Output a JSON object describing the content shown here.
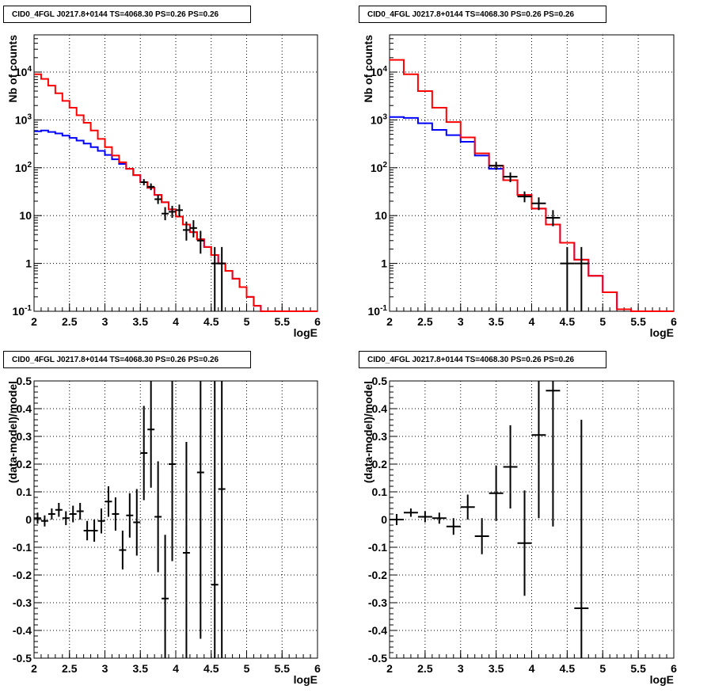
{
  "panel_title": "CID0_4FGL J0217.8+0144 TS=4068.30 PS=0.26 PS=0.26",
  "chart_data": [
    {
      "type": "line",
      "title": "CID0_4FGL J0217.8+0144 TS=4068.30 PS=0.26 PS=0.26",
      "xlabel": "logE",
      "ylabel": "Nb of counts",
      "xlim": [
        2,
        6
      ],
      "ylim": [
        0.1,
        60000
      ],
      "yscale": "log",
      "xticks": [
        "2",
        "2.5",
        "3",
        "3.5",
        "4",
        "4.5",
        "5",
        "5.5",
        "6"
      ],
      "yticks": [
        "10^-1",
        "1",
        "10",
        "10^2",
        "10^3",
        "10^4"
      ],
      "grid": true,
      "bin_edges": [
        2.0,
        2.1,
        2.2,
        2.3,
        2.4,
        2.5,
        2.6,
        2.7,
        2.8,
        2.9,
        3.0,
        3.1,
        3.2,
        3.3,
        3.4,
        3.5,
        3.6,
        3.7,
        3.8,
        3.9,
        4.0,
        4.1,
        4.2,
        4.3,
        4.4,
        4.5,
        4.6,
        4.7,
        4.8,
        4.9,
        5.0,
        5.1,
        5.2,
        5.3,
        5.4,
        5.5,
        5.6,
        5.7,
        5.8,
        5.9,
        6.0
      ],
      "series": [
        {
          "color": "#ff0000",
          "values": [
            9000,
            7200,
            5200,
            3600,
            2500,
            1800,
            1250,
            870,
            600,
            400,
            270,
            180,
            130,
            95,
            70,
            50,
            38,
            27,
            19,
            13.5,
            9.5,
            6.5,
            4.5,
            3.2,
            2.2,
            1.5,
            1.0,
            0.7,
            0.48,
            0.32,
            0.2,
            0.13,
            0.1,
            0.1,
            0.1,
            0.1,
            0.1,
            0.1,
            0.1,
            0.1
          ]
        },
        {
          "color": "#0000ff",
          "values": [
            580,
            600,
            560,
            520,
            470,
            420,
            370,
            320,
            270,
            225,
            185,
            150,
            120,
            95,
            70,
            50,
            38,
            27,
            19,
            13.5,
            9.5,
            6.5,
            4.5,
            3.2,
            2.2,
            1.5,
            1.0,
            0.7,
            0.48,
            0.32,
            0.2,
            0.13,
            0.1,
            0.1,
            0.1,
            0.1,
            0.1,
            0.1,
            0.1,
            0.1
          ]
        }
      ],
      "points": [
        {
          "x": 3.55,
          "xerr": 0.05,
          "y": 50,
          "ylo": 43,
          "yhi": 58
        },
        {
          "x": 3.65,
          "xerr": 0.05,
          "y": 40,
          "ylo": 34,
          "yhi": 47
        },
        {
          "x": 3.75,
          "xerr": 0.05,
          "y": 22,
          "ylo": 17.5,
          "yhi": 27
        },
        {
          "x": 3.85,
          "xerr": 0.05,
          "y": 11,
          "ylo": 8,
          "yhi": 15
        },
        {
          "x": 3.95,
          "xerr": 0.05,
          "y": 12,
          "ylo": 9,
          "yhi": 16
        },
        {
          "x": 4.05,
          "xerr": 0.05,
          "y": 13,
          "ylo": 9.5,
          "yhi": 17
        },
        {
          "x": 4.15,
          "xerr": 0.05,
          "y": 5,
          "ylo": 3,
          "yhi": 7.5
        },
        {
          "x": 4.25,
          "xerr": 0.05,
          "y": 5.5,
          "ylo": 3.5,
          "yhi": 8
        },
        {
          "x": 4.35,
          "xerr": 0.05,
          "y": 3,
          "ylo": 1.6,
          "yhi": 4.8
        },
        {
          "x": 4.55,
          "xerr": 0.05,
          "y": 1,
          "ylo": 0.1,
          "yhi": 2.2
        },
        {
          "x": 4.65,
          "xerr": 0.05,
          "y": 1,
          "ylo": 0.1,
          "yhi": 2.2
        }
      ]
    },
    {
      "type": "line",
      "title": "CID0_4FGL J0217.8+0144 TS=4068.30 PS=0.26 PS=0.26",
      "xlabel": "logE",
      "ylabel": "Nb of counts",
      "xlim": [
        2,
        6
      ],
      "ylim": [
        0.1,
        60000
      ],
      "yscale": "log",
      "xticks": [
        "2",
        "2.5",
        "3",
        "3.5",
        "4",
        "4.5",
        "5",
        "5.5",
        "6"
      ],
      "yticks": [
        "10^-1",
        "1",
        "10",
        "10^2",
        "10^3",
        "10^4"
      ],
      "grid": true,
      "bin_edges": [
        2.0,
        2.2,
        2.4,
        2.6,
        2.8,
        3.0,
        3.2,
        3.4,
        3.6,
        3.8,
        4.0,
        4.2,
        4.4,
        4.6,
        4.8,
        5.0,
        5.2,
        5.4,
        5.6,
        5.8,
        6.0
      ],
      "series": [
        {
          "color": "#ff0000",
          "values": [
            18000,
            9000,
            4000,
            1800,
            900,
            430,
            200,
            110,
            55,
            27,
            14,
            6.5,
            2.7,
            1.2,
            0.55,
            0.25,
            0.11,
            0.1,
            0.1,
            0.1
          ]
        },
        {
          "color": "#0000ff",
          "values": [
            1150,
            1100,
            850,
            620,
            480,
            350,
            180,
            95,
            55,
            27,
            14,
            6.5,
            2.7,
            1.2,
            0.55,
            0.25,
            0.11,
            0.1,
            0.1,
            0.1
          ]
        }
      ],
      "points": [
        {
          "x": 3.5,
          "xerr": 0.1,
          "y": 110,
          "ylo": 90,
          "yhi": 132
        },
        {
          "x": 3.7,
          "xerr": 0.1,
          "y": 65,
          "ylo": 50,
          "yhi": 80
        },
        {
          "x": 3.9,
          "xerr": 0.1,
          "y": 25,
          "ylo": 19,
          "yhi": 32
        },
        {
          "x": 4.1,
          "xerr": 0.1,
          "y": 18,
          "ylo": 13,
          "yhi": 24
        },
        {
          "x": 4.3,
          "xerr": 0.1,
          "y": 9,
          "ylo": 6,
          "yhi": 13
        },
        {
          "x": 4.5,
          "xerr": 0.1,
          "y": 1,
          "ylo": 0.1,
          "yhi": 2.2
        },
        {
          "x": 4.7,
          "xerr": 0.1,
          "y": 1,
          "ylo": 0.1,
          "yhi": 2.2
        }
      ]
    },
    {
      "type": "scatter",
      "title": "CID0_4FGL J0217.8+0144 TS=4068.30 PS=0.26 PS=0.26",
      "xlabel": "logE",
      "ylabel": "(data-model)/model",
      "xlim": [
        2,
        6
      ],
      "ylim": [
        -0.5,
        0.5
      ],
      "xticks": [
        "2",
        "2.5",
        "3",
        "3.5",
        "4",
        "4.5",
        "5",
        "5.5",
        "6"
      ],
      "yticks": [
        "-0.5",
        "-0.4",
        "-0.3",
        "-0.2",
        "-0.1",
        "0",
        "0.1",
        "0.2",
        "0.3",
        "0.4",
        "0.5"
      ],
      "grid": true,
      "points": [
        {
          "x": 2.05,
          "xerr": 0.05,
          "y": 0.005,
          "err": 0.02
        },
        {
          "x": 2.15,
          "xerr": 0.05,
          "y": -0.005,
          "err": 0.02
        },
        {
          "x": 2.25,
          "xerr": 0.05,
          "y": 0.02,
          "err": 0.02
        },
        {
          "x": 2.35,
          "xerr": 0.05,
          "y": 0.035,
          "err": 0.025
        },
        {
          "x": 2.45,
          "xerr": 0.05,
          "y": 0.005,
          "err": 0.025
        },
        {
          "x": 2.55,
          "xerr": 0.05,
          "y": 0.02,
          "err": 0.03
        },
        {
          "x": 2.65,
          "xerr": 0.05,
          "y": 0.03,
          "err": 0.03
        },
        {
          "x": 2.75,
          "xerr": 0.05,
          "y": -0.04,
          "err": 0.035
        },
        {
          "x": 2.85,
          "xerr": 0.05,
          "y": -0.04,
          "err": 0.04
        },
        {
          "x": 2.95,
          "xerr": 0.05,
          "y": -0.005,
          "err": 0.045
        },
        {
          "x": 3.05,
          "xerr": 0.05,
          "y": 0.065,
          "err": 0.055
        },
        {
          "x": 3.15,
          "xerr": 0.05,
          "y": 0.02,
          "err": 0.06
        },
        {
          "x": 3.25,
          "xerr": 0.05,
          "y": -0.11,
          "err": 0.07
        },
        {
          "x": 3.35,
          "xerr": 0.05,
          "y": 0.015,
          "err": 0.08
        },
        {
          "x": 3.45,
          "xerr": 0.05,
          "y": -0.01,
          "err": 0.12
        },
        {
          "x": 3.55,
          "xerr": 0.05,
          "y": 0.24,
          "err": 0.17
        },
        {
          "x": 3.65,
          "xerr": 0.05,
          "y": 0.325,
          "err": 0.21
        },
        {
          "x": 3.75,
          "xerr": 0.05,
          "y": 0.01,
          "err": 0.2
        },
        {
          "x": 3.85,
          "xerr": 0.05,
          "y": -0.285,
          "err": 0.23
        },
        {
          "x": 3.95,
          "xerr": 0.05,
          "y": 0.2,
          "err": 0.35
        },
        {
          "x": 4.15,
          "xerr": 0.05,
          "y": -0.12,
          "err": 0.4
        },
        {
          "x": 4.35,
          "xerr": 0.05,
          "y": 0.17,
          "err": 0.6
        },
        {
          "x": 4.55,
          "xerr": 0.05,
          "y": -0.235,
          "err": 0.9
        },
        {
          "x": 4.65,
          "xerr": 0.05,
          "y": 0.11,
          "err": 0.9
        }
      ]
    },
    {
      "type": "scatter",
      "title": "CID0_4FGL J0217.8+0144 TS=4068.30 PS=0.26 PS=0.26",
      "xlabel": "logE",
      "ylabel": "(data-model)/model",
      "xlim": [
        2,
        6
      ],
      "ylim": [
        -0.5,
        0.5
      ],
      "xticks": [
        "2",
        "2.5",
        "3",
        "3.5",
        "4",
        "4.5",
        "5",
        "5.5",
        "6"
      ],
      "yticks": [
        "-0.5",
        "-0.4",
        "-0.3",
        "-0.2",
        "-0.1",
        "0",
        "0.1",
        "0.2",
        "0.3",
        "0.4",
        "0.5"
      ],
      "grid": true,
      "points": [
        {
          "x": 2.1,
          "xerr": 0.1,
          "y": 0.0,
          "err": 0.02
        },
        {
          "x": 2.3,
          "xerr": 0.1,
          "y": 0.025,
          "err": 0.015
        },
        {
          "x": 2.5,
          "xerr": 0.1,
          "y": 0.01,
          "err": 0.02
        },
        {
          "x": 2.7,
          "xerr": 0.1,
          "y": 0.005,
          "err": 0.02
        },
        {
          "x": 2.9,
          "xerr": 0.1,
          "y": -0.025,
          "err": 0.03
        },
        {
          "x": 3.1,
          "xerr": 0.1,
          "y": 0.045,
          "err": 0.045
        },
        {
          "x": 3.3,
          "xerr": 0.1,
          "y": -0.06,
          "err": 0.065
        },
        {
          "x": 3.5,
          "xerr": 0.1,
          "y": 0.095,
          "err": 0.1
        },
        {
          "x": 3.7,
          "xerr": 0.1,
          "y": 0.19,
          "err": 0.15
        },
        {
          "x": 3.9,
          "xerr": 0.1,
          "y": -0.085,
          "err": 0.19
        },
        {
          "x": 4.1,
          "xerr": 0.1,
          "y": 0.305,
          "err": 0.3
        },
        {
          "x": 4.3,
          "xerr": 0.1,
          "y": 0.465,
          "err": 0.49
        },
        {
          "x": 4.7,
          "xerr": 0.1,
          "y": -0.32,
          "err": 0.68
        }
      ]
    }
  ]
}
